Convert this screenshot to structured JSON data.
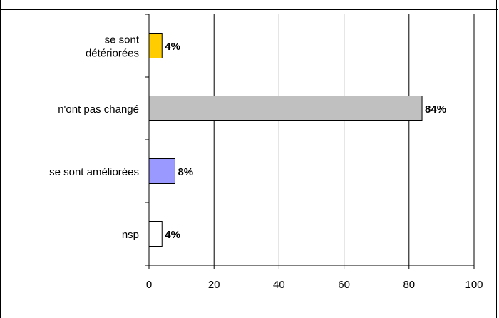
{
  "chart_data": {
    "type": "bar",
    "orientation": "horizontal",
    "categories": [
      [
        "se sont",
        "détériorées"
      ],
      [
        "n'ont pas changé"
      ],
      [
        "se sont améliorées"
      ],
      [
        "nsp"
      ]
    ],
    "values": [
      4,
      84,
      8,
      4
    ],
    "value_labels": [
      "4%",
      "84%",
      "8%",
      "4%"
    ],
    "bar_colors": [
      "#ffcc00",
      "#c0c0c0",
      "#9999ff",
      "#ffffff"
    ],
    "xlim": [
      0,
      100
    ],
    "x_ticks": [
      0,
      20,
      40,
      60,
      80,
      100
    ],
    "x_tick_labels": [
      "0",
      "20",
      "40",
      "60",
      "80",
      "100"
    ],
    "grid": true,
    "title": "",
    "xlabel": "",
    "ylabel": ""
  }
}
